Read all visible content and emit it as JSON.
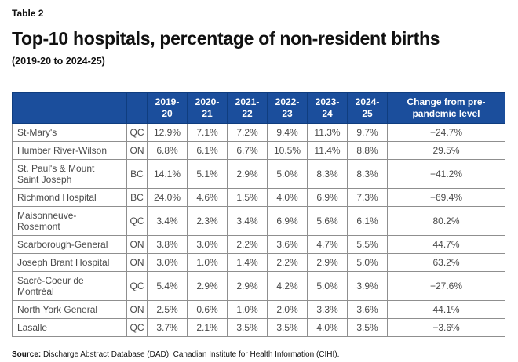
{
  "header": {
    "eyebrow": "Table 2",
    "title": "Top-10 hospitals, percentage of non-resident births",
    "subtitle": "(2019-20 to 2024-25)"
  },
  "footer": {
    "source_label": "Source:",
    "source_text": "Discharge Abstract Database (DAD), Canadian Institute for Health Information (CIHI)."
  },
  "colors": {
    "header_bg": "#1b4e9c",
    "header_divider": "#0f3d7f",
    "header_text": "#ffffff",
    "cell_border": "#8f8f8f",
    "body_text": "#4a4a4a",
    "heading_text": "#111111"
  },
  "chart_data": {
    "type": "table",
    "title": "Top-10 hospitals, percentage of non-resident births (2019-20 to 2024-25)",
    "columns": [
      "",
      "",
      "2019-20",
      "2020-21",
      "2021-22",
      "2022-23",
      "2023-24",
      "2024-25",
      "Change from pre-pandemic level"
    ],
    "rows": [
      {
        "hospital": "St-Mary's",
        "province": "QC",
        "values": [
          "12.9%",
          "7.1%",
          "7.2%",
          "9.4%",
          "11.3%",
          "9.7%"
        ],
        "change": "−24.7%"
      },
      {
        "hospital": "Humber River-Wilson",
        "province": "ON",
        "values": [
          "6.8%",
          "6.1%",
          "6.7%",
          "10.5%",
          "11.4%",
          "8.8%"
        ],
        "change": "29.5%"
      },
      {
        "hospital": "St. Paul's & Mount Saint Joseph",
        "province": "BC",
        "values": [
          "14.1%",
          "5.1%",
          "2.9%",
          "5.0%",
          "8.3%",
          "8.3%"
        ],
        "change": "−41.2%"
      },
      {
        "hospital": "Richmond Hospital",
        "province": "BC",
        "values": [
          "24.0%",
          "4.6%",
          "1.5%",
          "4.0%",
          "6.9%",
          "7.3%"
        ],
        "change": "−69.4%"
      },
      {
        "hospital": "Maisonneuve-Rosemont",
        "province": "QC",
        "values": [
          "3.4%",
          "2.3%",
          "3.4%",
          "6.9%",
          "5.6%",
          "6.1%"
        ],
        "change": "80.2%"
      },
      {
        "hospital": "Scarborough-General",
        "province": "ON",
        "values": [
          "3.8%",
          "3.0%",
          "2.2%",
          "3.6%",
          "4.7%",
          "5.5%"
        ],
        "change": "44.7%"
      },
      {
        "hospital": "Joseph Brant Hospital",
        "province": "ON",
        "values": [
          "3.0%",
          "1.0%",
          "1.4%",
          "2.2%",
          "2.9%",
          "5.0%"
        ],
        "change": "63.2%"
      },
      {
        "hospital": "Sacré-Coeur de Montréal",
        "province": "QC",
        "values": [
          "5.4%",
          "2.9%",
          "2.9%",
          "4.2%",
          "5.0%",
          "3.9%"
        ],
        "change": "−27.6%"
      },
      {
        "hospital": "North York General",
        "province": "ON",
        "values": [
          "2.5%",
          "0.6%",
          "1.0%",
          "2.0%",
          "3.3%",
          "3.6%"
        ],
        "change": "44.1%"
      },
      {
        "hospital": "Lasalle",
        "province": "QC",
        "values": [
          "3.7%",
          "2.1%",
          "3.5%",
          "3.5%",
          "4.0%",
          "3.5%"
        ],
        "change": "−3.6%"
      }
    ]
  }
}
